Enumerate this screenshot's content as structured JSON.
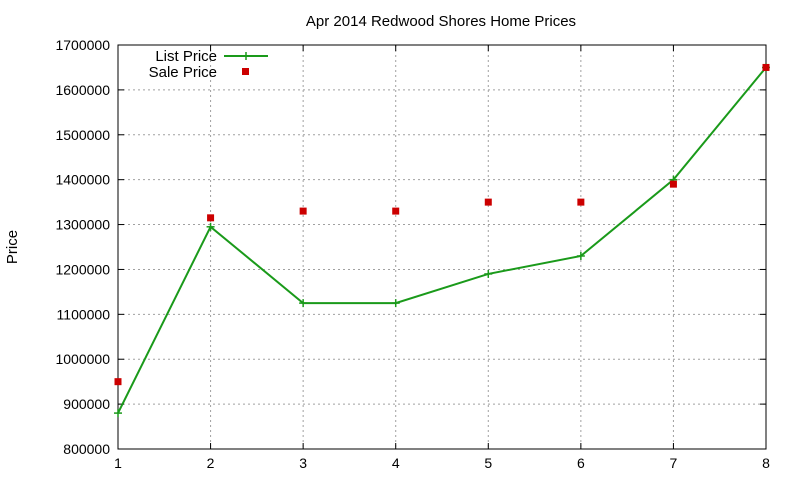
{
  "chart_data": {
    "type": "line",
    "title": "Apr 2014 Redwood Shores Home Prices",
    "xlabel": "",
    "ylabel": "Price",
    "x": [
      1,
      2,
      3,
      4,
      5,
      6,
      7,
      8
    ],
    "xlim": [
      1,
      8
    ],
    "ylim": [
      800000,
      1700000
    ],
    "xticks": [
      1,
      2,
      3,
      4,
      5,
      6,
      7,
      8
    ],
    "yticks": [
      800000,
      900000,
      1000000,
      1100000,
      1200000,
      1300000,
      1400000,
      1500000,
      1600000,
      1700000
    ],
    "grid": true,
    "legend_position": "top-left",
    "series": [
      {
        "name": "List Price",
        "style": "line-with-plus-markers",
        "color": "#1a9a1a",
        "values": [
          880000,
          1295000,
          1125000,
          1125000,
          1190000,
          1230000,
          1400000,
          1650000
        ]
      },
      {
        "name": "Sale Price",
        "style": "square-markers",
        "color": "#cc0000",
        "values": [
          950000,
          1315000,
          1330000,
          1330000,
          1350000,
          1350000,
          1390000,
          1650000
        ]
      }
    ]
  }
}
